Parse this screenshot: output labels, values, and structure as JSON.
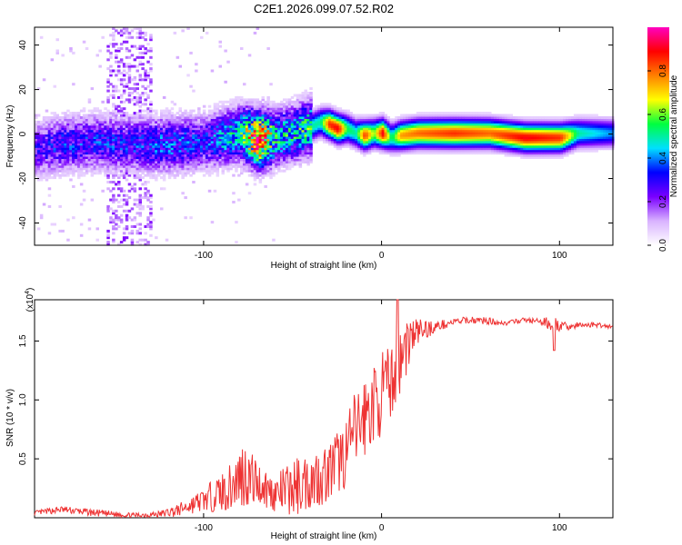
{
  "chart_data": [
    {
      "type": "heatmap",
      "title": "C2E1.2026.099.07.52.R02",
      "xlabel": "Height of straight line (km)",
      "ylabel": "Frequency (Hz)",
      "xlim": [
        -195,
        130
      ],
      "ylim": [
        -50,
        48
      ],
      "xticks": [
        -100,
        0,
        100
      ],
      "xtick_labels": [
        "-100",
        "0",
        "100"
      ],
      "yticks": [
        -40,
        -20,
        0,
        20,
        40
      ],
      "ytick_labels": [
        "-40",
        "-20",
        "0",
        "20",
        "40"
      ],
      "colorbar": {
        "label": "Normalized spectral amplitude",
        "range": [
          0,
          1
        ],
        "ticks": [
          0,
          0.2,
          0.4,
          0.6,
          0.8
        ],
        "tick_labels": [
          "0.0",
          "0.2",
          "0.4",
          "0.6",
          "0.8"
        ],
        "colors": [
          "#ffffff",
          "#d9b3ff",
          "#7a00ff",
          "#0000ff",
          "#00e0ff",
          "#00ff40",
          "#ffff00",
          "#ff8000",
          "#ff0000",
          "#ff00c0"
        ]
      },
      "ridge": {
        "x": [
          -195,
          -180,
          -160,
          -140,
          -120,
          -100,
          -90,
          -80,
          -70,
          -60,
          -50,
          -40,
          -35,
          -30,
          -25,
          -20,
          -15,
          -10,
          -5,
          0,
          5,
          10,
          20,
          40,
          60,
          80,
          100,
          110,
          120,
          130
        ],
        "y": [
          -7,
          -5,
          -4,
          -5,
          -5,
          -4,
          -2,
          0,
          -3,
          -2,
          0,
          3,
          5,
          4,
          2,
          2,
          0,
          -1,
          0,
          0,
          -2,
          -1,
          0,
          0,
          0,
          -2,
          -2,
          0,
          0,
          0
        ],
        "amplitude": [
          0.25,
          0.3,
          0.3,
          0.3,
          0.35,
          0.3,
          0.4,
          0.45,
          0.9,
          0.45,
          0.45,
          0.5,
          0.5,
          0.85,
          0.9,
          0.55,
          0.5,
          0.85,
          0.6,
          0.9,
          0.5,
          0.75,
          0.8,
          0.85,
          0.8,
          0.9,
          0.85,
          0.5,
          0.45,
          0.4
        ]
      }
    },
    {
      "type": "line",
      "xlabel": "Height of straight line (km)",
      "ylabel": "SNR (10 * v/v)",
      "y_scale_label": "(x10",
      "y_scale_exponent": "4",
      "color": "#ee3333",
      "xlim": [
        -195,
        130
      ],
      "ylim": [
        0,
        1.85
      ],
      "xticks": [
        -100,
        0,
        100
      ],
      "xtick_labels": [
        "-100",
        "0",
        "100"
      ],
      "yticks": [
        0.5,
        1.0,
        1.5
      ],
      "ytick_labels": [
        "0.5",
        "1.0",
        "1.5"
      ],
      "x": [
        -195,
        -180,
        -160,
        -140,
        -125,
        -115,
        -100,
        -85,
        -78,
        -70,
        -60,
        -50,
        -40,
        -30,
        -20,
        -15,
        -10,
        -5,
        0,
        5,
        10,
        15,
        20,
        30,
        40,
        50,
        60,
        70,
        80,
        90,
        97,
        100,
        110,
        120,
        130
      ],
      "values": [
        0.04,
        0.07,
        0.04,
        0.02,
        0.03,
        0.06,
        0.15,
        0.25,
        0.38,
        0.3,
        0.2,
        0.25,
        0.32,
        0.38,
        0.55,
        0.72,
        0.85,
        0.95,
        1.05,
        1.15,
        1.3,
        1.5,
        1.58,
        1.62,
        1.66,
        1.68,
        1.67,
        1.65,
        1.68,
        1.66,
        1.65,
        1.62,
        1.63,
        1.64,
        1.62
      ],
      "noise": [
        0.02,
        0.03,
        0.03,
        0.02,
        0.03,
        0.05,
        0.1,
        0.2,
        0.3,
        0.2,
        0.15,
        0.25,
        0.25,
        0.25,
        0.3,
        0.35,
        0.35,
        0.35,
        0.35,
        0.3,
        0.3,
        0.25,
        0.12,
        0.05,
        0.03,
        0.03,
        0.03,
        0.02,
        0.02,
        0.03,
        0.08,
        0.04,
        0.03,
        0.02,
        0.02
      ]
    }
  ]
}
